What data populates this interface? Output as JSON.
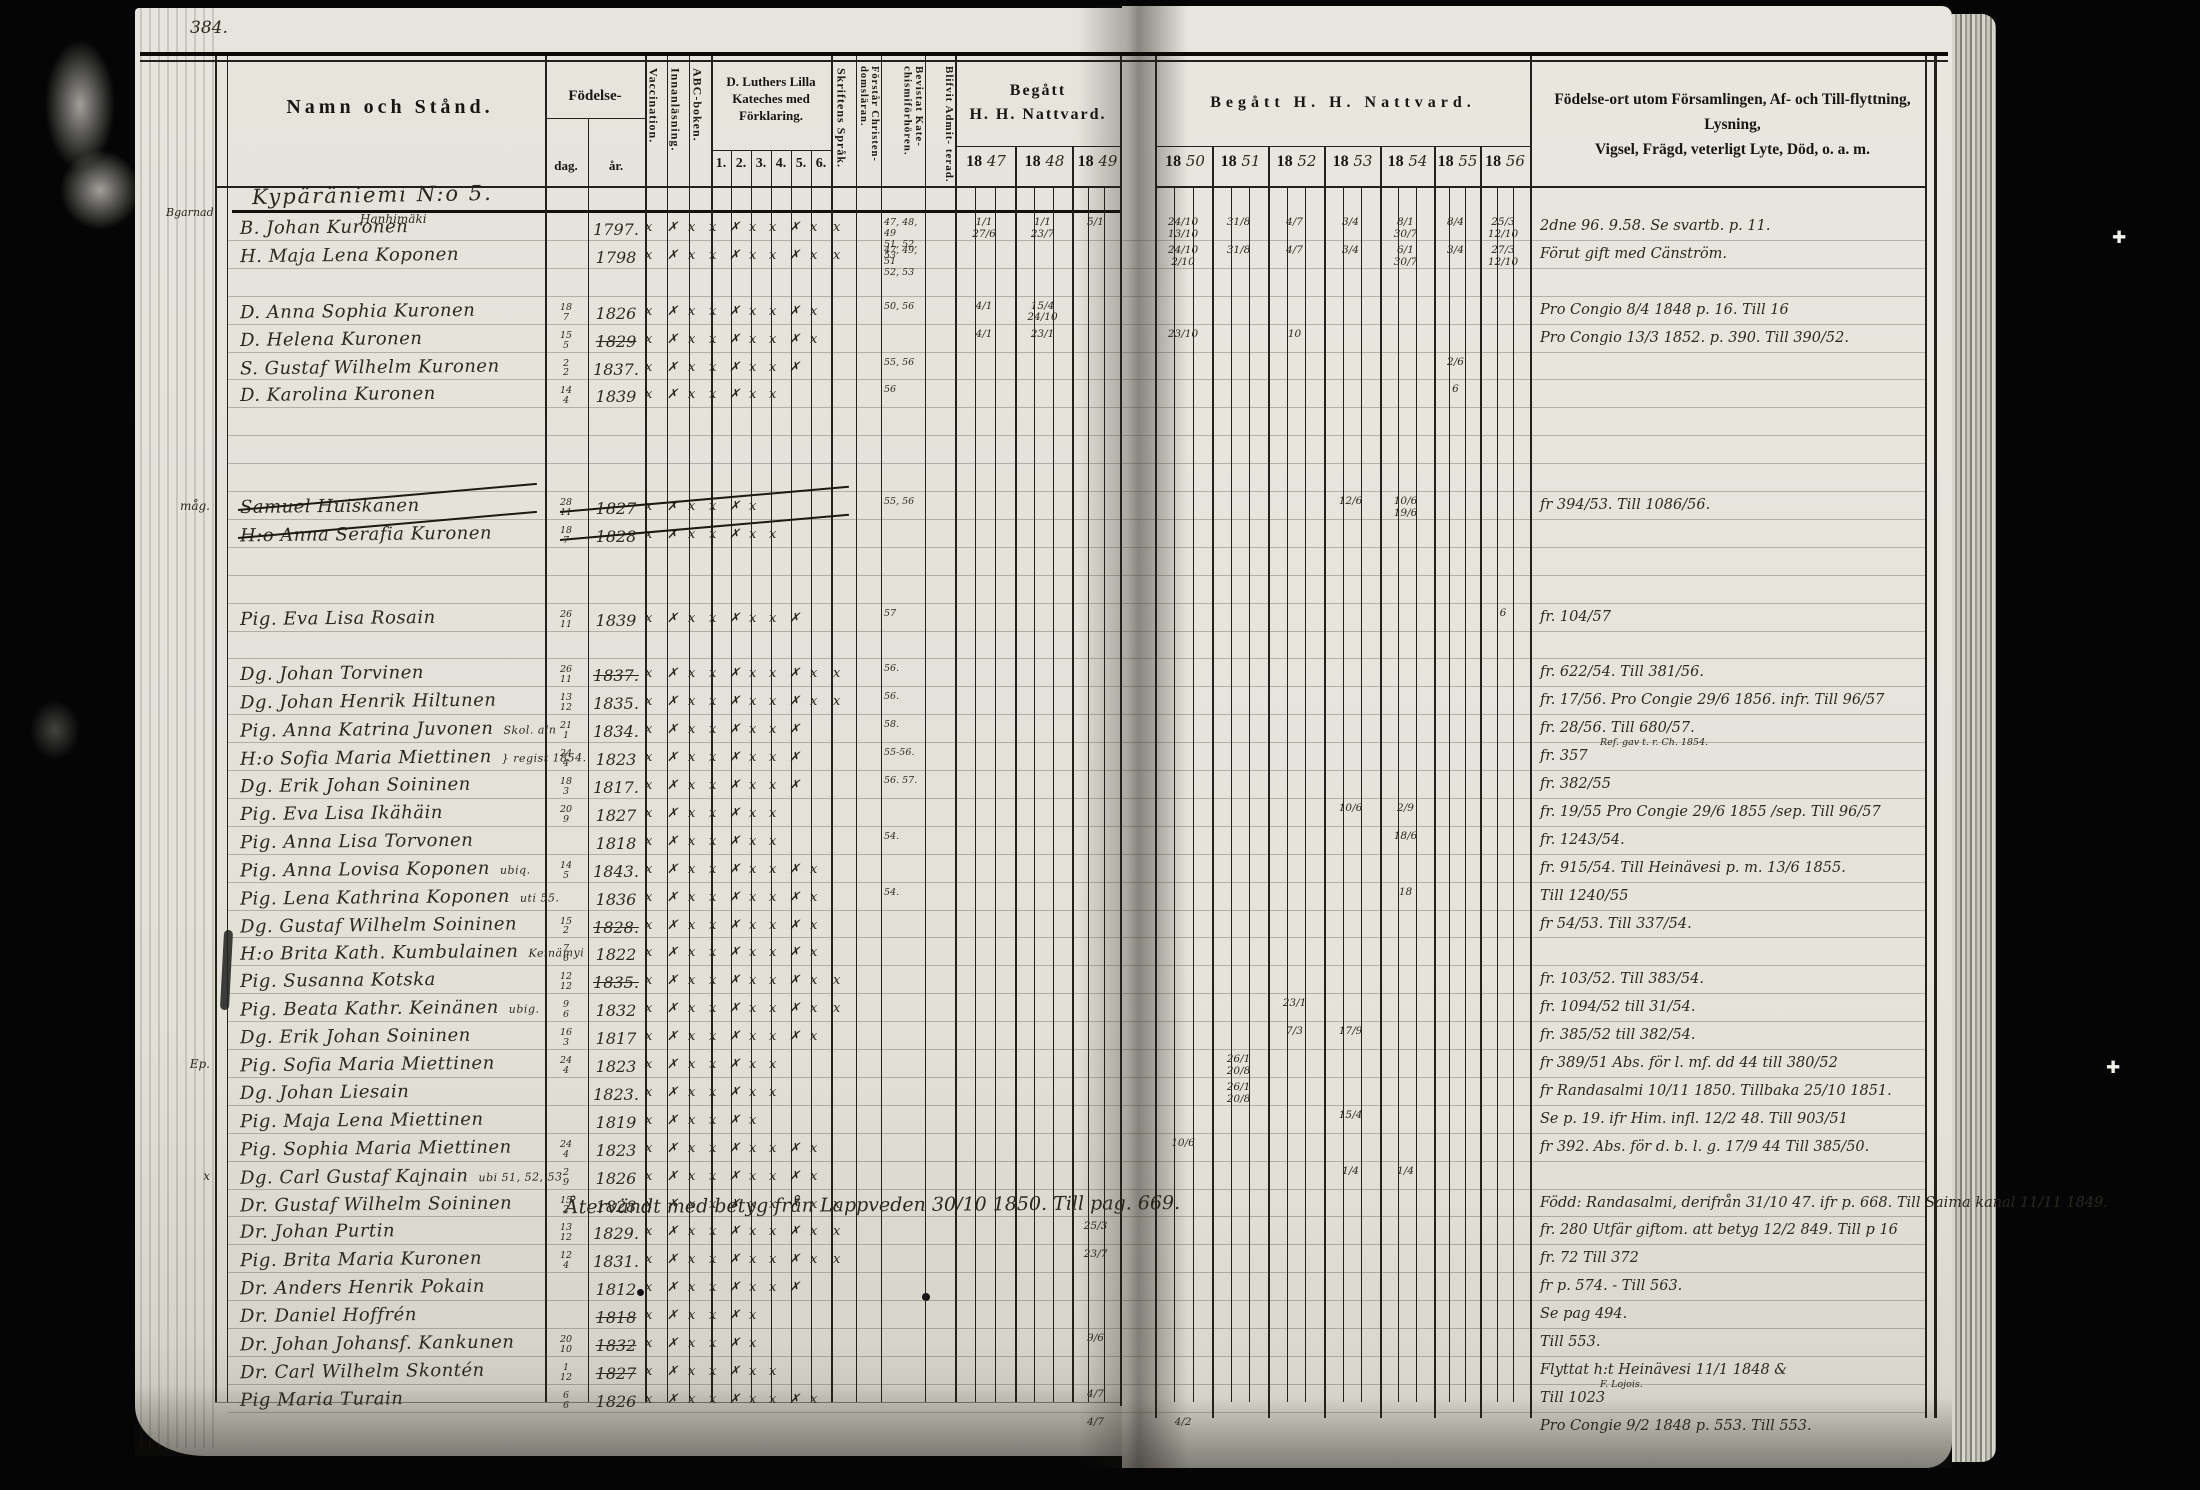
{
  "page_number": "384.",
  "header": {
    "name_col": "Namn och Stånd.",
    "birth": "Födelse-",
    "birth_day": "dag.",
    "birth_year": "år.",
    "vertical_cols": [
      "Vaccination.",
      "Innanläsning.",
      "ABC-boken."
    ],
    "katekes_title": "D. Luthers Lilla Kateches med Förklaring.",
    "katekes_subs": [
      "1.",
      "2.",
      "3.",
      "4.",
      "5.",
      "6."
    ],
    "sprak": "Skriftens Språk.",
    "forstar": "Förstår Christen- domsläran.",
    "bevistat": "Bevistat Kate- chismiförhören.",
    "blifvit": "Blifvit Admit- terad.",
    "natt_left_title_1": "Begått",
    "natt_left_title_2": "H. H. Nattvard.",
    "natt_left_years": [
      "1847",
      "1848",
      "1849"
    ],
    "natt_right_title": "Begått H. H. Nattvard.",
    "natt_right_years": [
      "1850",
      "1851",
      "1852",
      "1853",
      "1854",
      "1855",
      "1856"
    ],
    "notes_col_1": "Födelse-ort utom Församlingen, Af- och Till-flyttning, Lysning,",
    "notes_col_2": "Vigsel, Frägd, veterligt Lyte, Död, o. a. m."
  },
  "section": {
    "margin_note": "Bgarnad",
    "title": "Kypäräniemi N:o 5.",
    "farm": "Hanhimäki"
  },
  "mid_annotation": "Återvändt med betyg från Lappveden 30/10 1850. Till pag. 669.",
  "rows": [
    {
      "n": "B. Johan Kuronen",
      "y": "1797.",
      "x": 10,
      "k": "47, 48, 49\n51, 52, 53",
      "natt": {
        "1847": "1/1 27/6",
        "1848": "1/1 23/7",
        "1849": "5/1",
        "1850": "24/10 13/10",
        "1851": "31/8",
        "1852": "4/7",
        "1853": "3/4",
        "1854": "8/1 30/7",
        "1855": "8/4",
        "1856": "25/3 12/10"
      },
      "note": "2dne 96. 9.58. Se svartb. p. 11."
    },
    {
      "n": "H. Maja Lena Koponen",
      "y": "1798",
      "x": 10,
      "k": "47, 49, 51\n52, 53",
      "natt": {
        "1850": "24/10 2/10",
        "1851": "31/8",
        "1852": "4/7",
        "1853": "3/4",
        "1854": "6/1 30/7",
        "1855": "3/4",
        "1856": "27/3 12/10"
      },
      "note": "Förut gift med Cänström."
    },
    {},
    {
      "n": "D. Anna Sophia Kuronen",
      "d": "18/7",
      "y": "1826",
      "x": 9,
      "k": "50, 56",
      "natt": {
        "1847": "4/1",
        "1848": "15/4 24/10"
      },
      "note": "Pro Congio 8/4 1848 p. 16. Till 16"
    },
    {
      "n": "D. Helena Kuronen",
      "d": "15/5",
      "y": "1829",
      "x": 9,
      "crossY": true,
      "natt": {
        "1847": "4/1",
        "1848": "23/1",
        "1850": "23/10",
        "1852": "10"
      },
      "note": "Pro Congio 13/3 1852. p. 390. Till 390/52."
    },
    {
      "n": "S. Gustaf Wilhelm Kuronen",
      "d": "2/2",
      "y": "1837.",
      "x": 8,
      "k": "55, 56",
      "natt": {
        "1855": "2/6"
      }
    },
    {
      "n": "D. Karolina Kuronen",
      "d": "14/4",
      "y": "1839",
      "x": 7,
      "k": "56",
      "natt": {
        "1855": "6"
      }
    },
    {},
    {},
    {},
    {
      "m": "måg.",
      "n": "Samuel Huiskanen",
      "d": "28/11",
      "y": "1827",
      "x": 6,
      "k": "55, 56",
      "crossed": true,
      "natt": {
        "1853": "12/6",
        "1854": "10/6 19/6"
      },
      "note": "fr 394/53. Till 1086/56."
    },
    {
      "n": "H:o Anna Serafia Kuronen",
      "d": "18/7",
      "y": "1828",
      "x": 7,
      "crossed": true
    },
    {},
    {},
    {
      "n": "Pig. Eva Lisa Rosain",
      "d": "26/11",
      "y": "1839",
      "x": 8,
      "k": "57",
      "natt": {
        "1856": "6"
      },
      "note": "fr. 104/57"
    },
    {},
    {
      "n": "Dg. Johan Torvinen",
      "d": "26/11",
      "y": "1837.",
      "x": 10,
      "k": "56.",
      "crossY": true,
      "note": "fr. 622/54. Till 381/56."
    },
    {
      "n": "Dg. Johan Henrik Hiltunen",
      "d": "13/12",
      "y": "1835.",
      "x": 10,
      "k": "56.",
      "note": "fr. 17/56. Pro Congie 29/6 1856. infr. Till 96/57"
    },
    {
      "n": "Pig. Anna Katrina Juvonen",
      "d": "21/1",
      "y": "1834.",
      "x": 8,
      "k": "58.",
      "tag": "Skol. aln",
      "note": "fr. 28/56. Till 680/57.",
      "ns": "Ref. gav t. r. Ch. 1854."
    },
    {
      "n": "H:o Sofia Maria Miettinen",
      "tag": "} regist 1854.",
      "d": "24/4",
      "y": "1823",
      "x": 8,
      "k": "55-56.",
      "note": "fr. 357"
    },
    {
      "n": "Dg. Erik Johan Soininen",
      "d": "18/3",
      "y": "1817.",
      "x": 8,
      "k": "56. 57.",
      "note": "fr. 382/55"
    },
    {
      "n": "Pig. Eva Lisa Ikähäin",
      "d": "20/9",
      "y": "1827",
      "x": 7,
      "natt": {
        "1853": "10/6",
        "1854": "2/9"
      },
      "note": "fr. 19/55 Pro Congie 29/6 1855 /sep. Till 96/57"
    },
    {
      "n": "Pig. Anna Lisa Torvonen",
      "y": "1818",
      "x": 7,
      "k": "54.",
      "natt": {
        "1854": "18/6"
      },
      "note": "fr. 1243/54."
    },
    {
      "n": "Pig. Anna Lovisa Koponen",
      "tag": "ubiq.",
      "d": "14/5",
      "y": "1843.",
      "x": 9,
      "note": "fr. 915/54. Till Heinävesi p. m. 13/6 1855."
    },
    {
      "n": "Pig. Lena Kathrina Koponen",
      "tag": "uti 55.",
      "y": "1836",
      "x": 9,
      "k": "54.",
      "natt": {
        "1854": "18"
      },
      "note": "Till 1240/55"
    },
    {
      "n": "Dg. Gustaf Wilhelm Soininen",
      "d": "15/2",
      "y": "1828.",
      "x": 9,
      "crossY": true,
      "note": "fr 54/53. Till 337/54."
    },
    {
      "n": "H:o Brita Kath. Kumbulainen",
      "tag": "Keinämyi",
      "d": "7/6",
      "y": "1822",
      "x": 9
    },
    {
      "n": "Pig. Susanna Kotska",
      "d": "12/12",
      "y": "1835.",
      "x": 10,
      "crossY": true,
      "note": "fr. 103/52. Till 383/54."
    },
    {
      "n": "Pig. Beata Kathr. Keinänen",
      "tag": "ubig.",
      "d": "9/6",
      "y": "1832",
      "x": 10,
      "natt": {
        "1852": "23/1"
      },
      "note": "fr. 1094/52 till 31/54."
    },
    {
      "n": "Dg. Erik Johan Soininen",
      "d": "16/3",
      "y": "1817",
      "x": 9,
      "natt": {
        "1852": "7/3",
        "1853": "17/9"
      },
      "note": "fr. 385/52 till 382/54."
    },
    {
      "m": "Ep.",
      "n": "Pig. Sofia Maria Miettinen",
      "d": "24/4",
      "y": "1823",
      "x": 7,
      "natt": {
        "1851": "26/1 20/8"
      },
      "note": "fr 389/51 Abs. för l. mf. dd 44 till 380/52"
    },
    {
      "n": "Dg. Johan Liesain",
      "y": "1823.",
      "x": 7,
      "natt": {
        "1851": "26/1 20/8"
      },
      "note": "fr Randasalmi 10/11 1850. Tillbaka 25/10 1851."
    },
    {
      "n": "Pig. Maja Lena Miettinen",
      "y": "1819",
      "x": 6,
      "natt": {
        "1853": "15/4"
      },
      "note": "Se p. 19. ifr Him. infl. 12/2 48. Till 903/51"
    },
    {
      "n": "Pig. Sophia Maria Miettinen",
      "d": "24/4",
      "y": "1823",
      "x": 9,
      "natt": {
        "1850": "10/6"
      },
      "note": "fr 392. Abs. för d. b. l. g. 17/9 44  Till 385/50."
    },
    {
      "m": "x",
      "n": "Dg. Carl Gustaf Kajnain",
      "tag": "ubi 51, 52, 53.",
      "d": "2/9",
      "y": "1826",
      "x": 9,
      "natt": {
        "1853": "1/4",
        "1854": "1/4"
      }
    },
    {
      "n": "Dr. Gustaf Wilhelm Soininen",
      "d": "15/2",
      "y": "1828",
      "x": 10,
      "span": true,
      "note": "Född: Randasalmi, derifrån 31/10 47. ifr p. 668. Till Saima kanal 11/11 1849."
    },
    {
      "n": "Dr. Johan Purtin",
      "d": "13/12",
      "y": "1829.",
      "x": 10,
      "natt": {
        "1849": "25/3"
      },
      "note": "fr. 280 Utfär giftom. att betyg 12/2 849. Till p 16"
    },
    {
      "n": "Pig. Brita Maria Kuronen",
      "d": "12/4",
      "y": "1831.",
      "x": 10,
      "natt": {
        "1849": "23/7"
      },
      "note": "fr. 72  Till 372"
    },
    {
      "n": "Dr. Anders Henrik Pokain",
      "y": "1812",
      "x": 8,
      "note": "fr p. 574. - Till 563."
    },
    {
      "n": "Dr. Daniel Hoffrén",
      "y": "1818",
      "x": 6,
      "crossY": true,
      "note": "Se pag 494."
    },
    {
      "n": "Dr. Johan Johansf. Kankunen",
      "d": "20/10",
      "y": "1832",
      "x": 6,
      "crossY": true,
      "natt": {
        "1849": "9/6"
      },
      "note": "Till 553."
    },
    {
      "n": "Dr. Carl Wilhelm Skontén",
      "d": "1/12",
      "y": "1827",
      "x": 7,
      "crossY": true,
      "note": "Flyttat h:t Heinävesi 11/1 1848 &",
      "ns": "F. Lojois."
    },
    {
      "n": "Pig Maria Turain",
      "d": "6/6",
      "y": "1826",
      "x": 9,
      "natt": {
        "1849": "4/7"
      },
      "note": "Till 1023"
    },
    {
      "natt": {
        "1849": "4/7",
        "1850": "4/2"
      },
      "note": "Pro Congie 9/2 1848 p. 553. Till 553."
    }
  ]
}
